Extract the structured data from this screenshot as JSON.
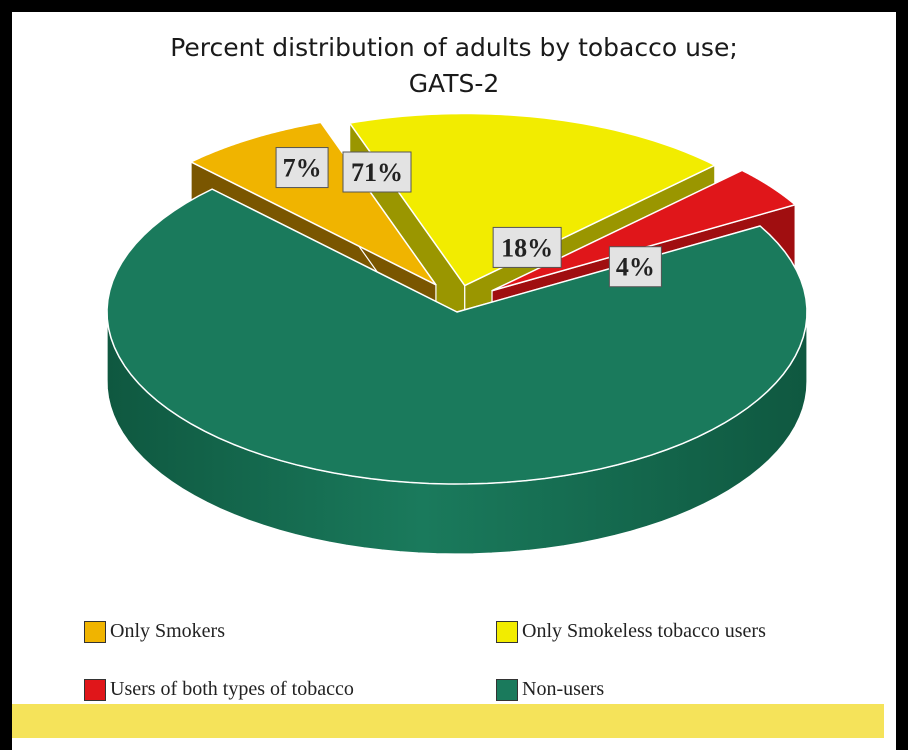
{
  "chart_data": {
    "type": "pie",
    "title": [
      "Percent distribution of adults by tobacco use;",
      "GATS-2"
    ],
    "slices": [
      {
        "label": "Non-users",
        "value": 71,
        "display": "71%",
        "color": "#1a7a5c",
        "dark": "#0f5840"
      },
      {
        "label": "Only Smokers",
        "value": 7,
        "display": "7%",
        "color": "#f0b400",
        "dark": "#7a5600"
      },
      {
        "label": "Only Smokeless tobacco users",
        "value": 18,
        "display": "18%",
        "color": "#f2ec00",
        "dark": "#9a9600"
      },
      {
        "label": "Users of both types of tobacco",
        "value": 4,
        "display": "4%",
        "color": "#e0161a",
        "dark": "#a00e10"
      }
    ],
    "legend": [
      {
        "label": "Only Smokers",
        "color": "#f0b400"
      },
      {
        "label": "Only Smokeless tobacco users",
        "color": "#f2ec00"
      },
      {
        "label": "Users of both types of tobacco",
        "color": "#e0161a"
      },
      {
        "label": "Non-users",
        "color": "#1a7a5c"
      }
    ],
    "legend_position": "bottom"
  },
  "footer_color": "#f5e35a"
}
